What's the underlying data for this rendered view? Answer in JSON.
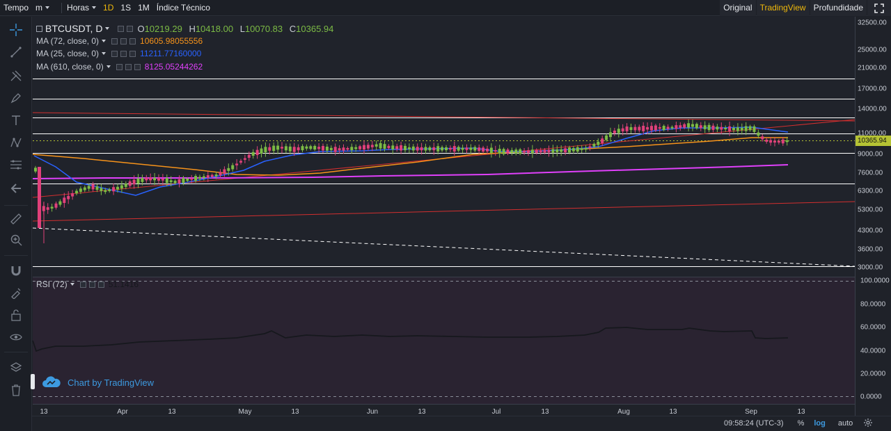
{
  "topbar": {
    "time_label": "Tempo",
    "interval_select": "m",
    "hours_select": "Horas",
    "intervals": [
      "1D",
      "1S",
      "1M"
    ],
    "active_interval": "1D",
    "indicators_label": "Índice Técnico",
    "views": [
      "Original",
      "TradingView",
      "Profundidade"
    ],
    "active_view": "TradingView"
  },
  "legend": {
    "symbol": "BTCUSDT, D",
    "ohlc": {
      "o_label": "O",
      "o": "10219.29",
      "h_label": "H",
      "h": "10418.00",
      "l_label": "L",
      "l": "10070.83",
      "c_label": "C",
      "c": "10365.94"
    },
    "ma": [
      {
        "label": "MA (72, close, 0)",
        "value": "10605.98055556",
        "color": "#f7931a"
      },
      {
        "label": "MA (25, close, 0)",
        "value": "11211.77160000",
        "color": "#2962ff"
      },
      {
        "label": "MA (610, close, 0)",
        "value": "8125.05244262",
        "color": "#e040fb"
      }
    ],
    "rsi": {
      "label": "RSI (72)",
      "value": "51.1416"
    }
  },
  "price_axis": [
    "32500.00",
    "25000.00",
    "21000.00",
    "17000.00",
    "14000.00",
    "11000.00",
    "9000.00",
    "7600.00",
    "6300.00",
    "5300.00",
    "4300.00",
    "3600.00",
    "3000.00"
  ],
  "current_price": "10365.94",
  "rsi_axis": [
    "100.0000",
    "80.0000",
    "60.0000",
    "40.0000",
    "20.0000",
    "0.0000"
  ],
  "time_axis": [
    "13",
    "Apr",
    "13",
    "May",
    "13",
    "Jun",
    "13",
    "Jul",
    "13",
    "Aug",
    "13",
    "Sep",
    "13"
  ],
  "watermark": "Chart by TradingView",
  "bottombar": {
    "clock": "09:58:24 (UTC-3)",
    "percent": "%",
    "log": "log",
    "auto": "auto"
  },
  "colors": {
    "up": "#7cbb45",
    "down": "#e0407a",
    "ma72": "#f7931a",
    "ma25": "#2962ff",
    "ma610": "#e040fb",
    "trend": "#d32f2f",
    "accent": "#f0b90b"
  }
}
